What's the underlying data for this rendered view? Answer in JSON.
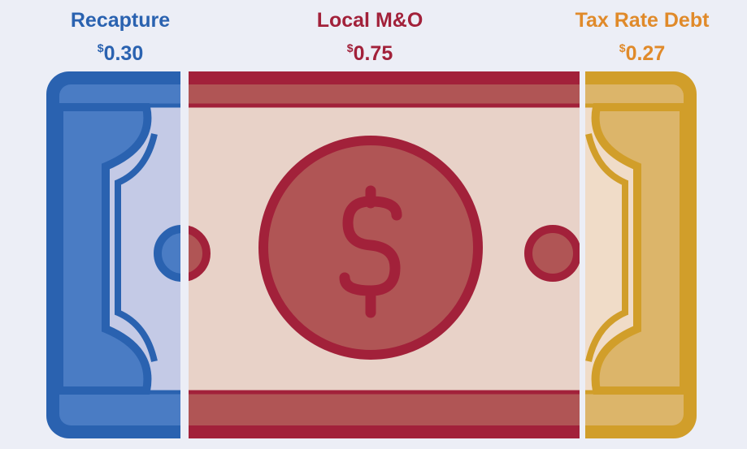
{
  "segments": [
    {
      "title": "Recapture",
      "currency": "$",
      "amount": "0.30"
    },
    {
      "title": "Local M&O",
      "currency": "$",
      "amount": "0.75"
    },
    {
      "title": "Tax Rate Debt",
      "currency": "$",
      "amount": "0.27"
    }
  ]
}
